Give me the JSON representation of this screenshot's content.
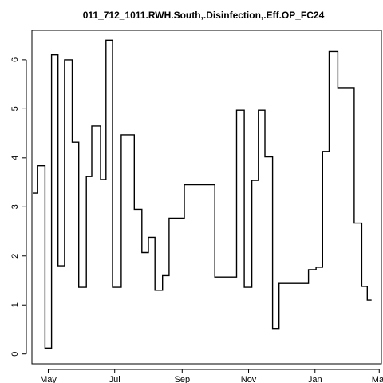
{
  "chart_data": {
    "type": "line",
    "title": "011_712_1011.RWH.South,.Disinfection,.Eff.OP_FC24",
    "xlabel": "",
    "ylabel": "",
    "xlim": [
      -15,
      306
    ],
    "ylim": [
      -0.2,
      6.6
    ],
    "x_ticks": [
      {
        "label": "May",
        "day": 0
      },
      {
        "label": "Jul",
        "day": 61
      },
      {
        "label": "Sep",
        "day": 123
      },
      {
        "label": "Nov",
        "day": 184
      },
      {
        "label": "Jan",
        "day": 245
      },
      {
        "label": "Mar",
        "day": 304
      }
    ],
    "y_ticks": [
      0,
      1,
      2,
      3,
      4,
      5,
      6
    ],
    "line_style": "step",
    "series": [
      {
        "color": "#000000",
        "points": [
          [
            -20,
            3.84
          ],
          [
            -16,
            3.28
          ],
          [
            -10,
            3.84
          ],
          [
            -3,
            0.12
          ],
          [
            3,
            6.1
          ],
          [
            9,
            1.8
          ],
          [
            15,
            6.0
          ],
          [
            22,
            4.32
          ],
          [
            28,
            1.36
          ],
          [
            35,
            3.62
          ],
          [
            40,
            4.65
          ],
          [
            48,
            3.56
          ],
          [
            53,
            6.4
          ],
          [
            59,
            1.36
          ],
          [
            67,
            4.47
          ],
          [
            79,
            2.95
          ],
          [
            86,
            2.07
          ],
          [
            92,
            2.38
          ],
          [
            98,
            1.3
          ],
          [
            105,
            1.6
          ],
          [
            111,
            2.77
          ],
          [
            125,
            3.45
          ],
          [
            153,
            1.57
          ],
          [
            173,
            4.97
          ],
          [
            180,
            1.36
          ],
          [
            187,
            3.54
          ],
          [
            193,
            4.97
          ],
          [
            199,
            4.02
          ],
          [
            206,
            0.52
          ],
          [
            212,
            1.44
          ],
          [
            239,
            1.72
          ],
          [
            246,
            1.77
          ],
          [
            252,
            4.13
          ],
          [
            258,
            6.17
          ],
          [
            266,
            5.43
          ],
          [
            281,
            2.67
          ],
          [
            288,
            1.38
          ],
          [
            293,
            1.1
          ],
          [
            297,
            1.1
          ]
        ]
      }
    ]
  }
}
